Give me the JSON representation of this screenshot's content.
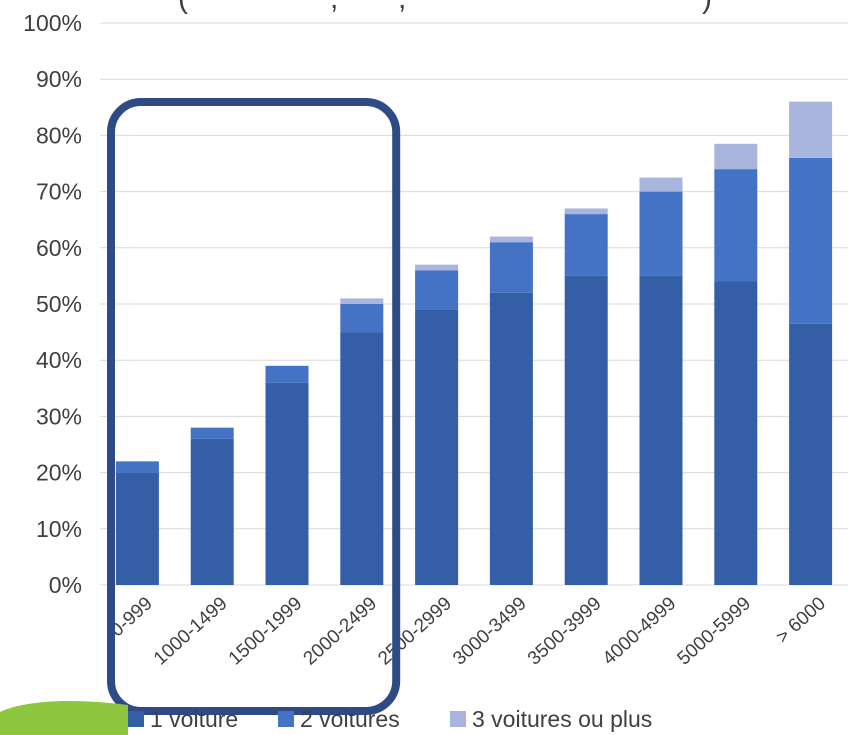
{
  "chart_data": {
    "type": "bar",
    "stacked": true,
    "categories": [
      "0-999",
      "1000-1499",
      "1500-1999",
      "2000-2499",
      "2500-2999",
      "3000-3499",
      "3500-3999",
      "4000-4999",
      "5000-5999",
      "> 6000"
    ],
    "series": [
      {
        "name": "1 voiture",
        "color": "#345ea5",
        "values": [
          20,
          26,
          36,
          45,
          49,
          52,
          55,
          55,
          54,
          46.5
        ]
      },
      {
        "name": "2 voitures",
        "color": "#4472c4",
        "values": [
          2,
          2,
          3,
          5,
          7,
          9,
          11,
          15,
          20,
          29.5
        ]
      },
      {
        "name": "3 voitures ou plus",
        "color": "#a9b5dc",
        "values": [
          0,
          0,
          0,
          1,
          1,
          1,
          1,
          2.5,
          4.5,
          10
        ]
      }
    ],
    "yticks": [
      "0%",
      "10%",
      "20%",
      "30%",
      "40%",
      "50%",
      "60%",
      "70%",
      "80%",
      "90%",
      "100%"
    ],
    "ylim": [
      0,
      100
    ],
    "grid": true,
    "legend_position": "bottom",
    "title": "",
    "xlabel": "",
    "ylabel": ""
  },
  "highlight": {
    "color": "#2f4b86",
    "categories": [
      "0-999",
      "1000-1499",
      "1500-1999",
      "2000-2499"
    ]
  },
  "decoration": {
    "green_shape_color": "#8dc63f"
  }
}
